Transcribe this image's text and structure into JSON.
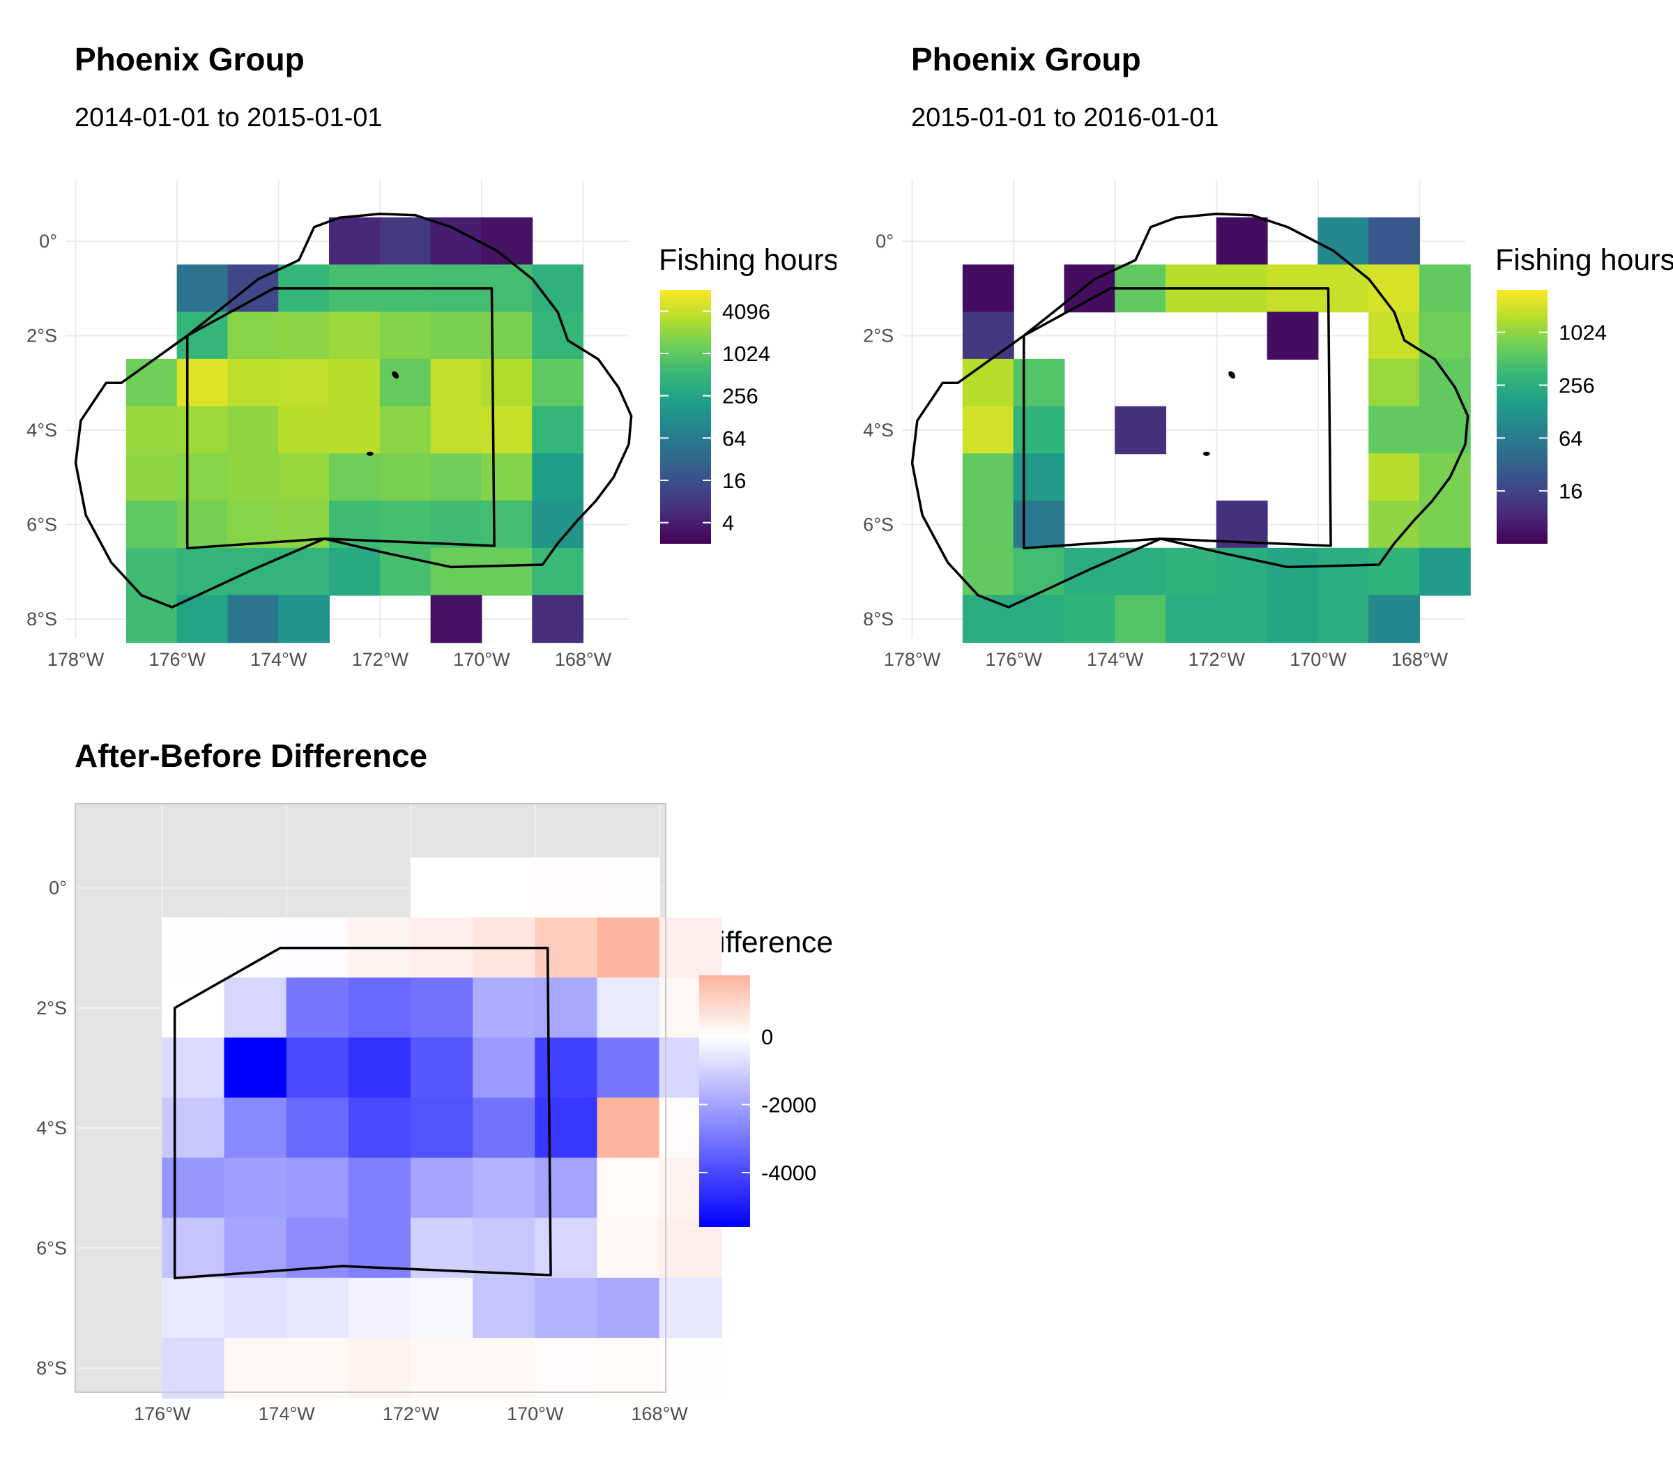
{
  "panels": {
    "before": {
      "title": "Phoenix Group",
      "subtitle": "2014-01-01 to 2015-01-01",
      "legend_title": "Fishing hours",
      "legend_labels": [
        "4096",
        "1024",
        "256",
        "64",
        "16",
        "4"
      ]
    },
    "after": {
      "title": "Phoenix Group",
      "subtitle": "2015-01-01 to 2016-01-01",
      "legend_title": "Fishing hours",
      "legend_labels": [
        "1024",
        "256",
        "64",
        "16"
      ]
    },
    "diff": {
      "title": "After-Before Difference",
      "legend_title": "Difference",
      "legend_labels": [
        "0",
        "-2000",
        "-4000"
      ]
    }
  },
  "colors": {
    "viridis": [
      "#440154",
      "#482878",
      "#3e4989",
      "#31688e",
      "#26828e",
      "#1f9e89",
      "#35b779",
      "#6ece58",
      "#b5de2b",
      "#fde725"
    ],
    "diff_high": "#fdb49c",
    "diff_mid": "#ffffff",
    "diff_low": "#0000ff",
    "panel_bg": "#e3e3e3"
  },
  "chart_data": [
    {
      "type": "heatmap",
      "title": "Phoenix Group",
      "subtitle": "2014-01-01 to 2015-01-01",
      "x_ticks": [
        "178°W",
        "176°W",
        "174°W",
        "172°W",
        "170°W",
        "168°W"
      ],
      "y_ticks": [
        "0°",
        "2°S",
        "4°S",
        "6°S",
        "8°S"
      ],
      "xlim": [
        -178.2,
        -167.1
      ],
      "ylim": [
        -8.4,
        1.3
      ],
      "color_scale": "viridis, log2",
      "legend": {
        "title": "Fishing hours",
        "breaks": [
          4096,
          1024,
          256,
          64,
          16,
          4
        ]
      },
      "cell_size_deg": 1,
      "cells": [
        [
          -173,
          0,
          5
        ],
        [
          -172,
          0,
          8
        ],
        [
          -171,
          0,
          4
        ],
        [
          -170,
          0,
          3
        ],
        [
          -176,
          -1,
          45
        ],
        [
          -175,
          -1,
          12
        ],
        [
          -174,
          -1,
          500
        ],
        [
          -173,
          -1,
          700
        ],
        [
          -172,
          -1,
          700
        ],
        [
          -171,
          -1,
          650
        ],
        [
          -170,
          -1,
          650
        ],
        [
          -169,
          -1,
          400
        ],
        [
          -176,
          -2,
          500
        ],
        [
          -175,
          -2,
          1800
        ],
        [
          -174,
          -2,
          1900
        ],
        [
          -173,
          -2,
          2300
        ],
        [
          -172,
          -2,
          1700
        ],
        [
          -171,
          -2,
          1500
        ],
        [
          -170,
          -2,
          1500
        ],
        [
          -169,
          -2,
          500
        ],
        [
          -177,
          -3,
          1300
        ],
        [
          -176,
          -3,
          5600
        ],
        [
          -175,
          -3,
          3600
        ],
        [
          -174,
          -3,
          3700
        ],
        [
          -173,
          -3,
          3300
        ],
        [
          -172,
          -3,
          1100
        ],
        [
          -171,
          -3,
          3700
        ],
        [
          -170,
          -3,
          3000
        ],
        [
          -169,
          -3,
          1000
        ],
        [
          -177,
          -4,
          2200
        ],
        [
          -176,
          -4,
          2400
        ],
        [
          -175,
          -4,
          2000
        ],
        [
          -174,
          -4,
          3300
        ],
        [
          -173,
          -4,
          3400
        ],
        [
          -172,
          -4,
          1900
        ],
        [
          -171,
          -4,
          3700
        ],
        [
          -170,
          -4,
          4100
        ],
        [
          -169,
          -4,
          500
        ],
        [
          -177,
          -5,
          2000
        ],
        [
          -176,
          -5,
          1800
        ],
        [
          -175,
          -5,
          2000
        ],
        [
          -174,
          -5,
          2200
        ],
        [
          -173,
          -5,
          1300
        ],
        [
          -172,
          -5,
          1500
        ],
        [
          -171,
          -5,
          1300
        ],
        [
          -170,
          -5,
          1700
        ],
        [
          -169,
          -5,
          200
        ],
        [
          -177,
          -6,
          1000
        ],
        [
          -176,
          -6,
          1400
        ],
        [
          -175,
          -6,
          1800
        ],
        [
          -174,
          -6,
          1900
        ],
        [
          -173,
          -6,
          600
        ],
        [
          -172,
          -6,
          700
        ],
        [
          -171,
          -6,
          600
        ],
        [
          -170,
          -6,
          650
        ],
        [
          -169,
          -6,
          150
        ],
        [
          -177,
          -7,
          600
        ],
        [
          -176,
          -7,
          500
        ],
        [
          -175,
          -7,
          450
        ],
        [
          -174,
          -7,
          450
        ],
        [
          -173,
          -7,
          300
        ],
        [
          -172,
          -7,
          700
        ],
        [
          -171,
          -7,
          1200
        ],
        [
          -170,
          -7,
          1200
        ],
        [
          -169,
          -7,
          550
        ],
        [
          -177,
          -8,
          600
        ],
        [
          -176,
          -8,
          250
        ],
        [
          -175,
          -8,
          50
        ],
        [
          -174,
          -8,
          150
        ],
        [
          -171,
          -8,
          3
        ],
        [
          -169,
          -8,
          6
        ]
      ]
    },
    {
      "type": "heatmap",
      "title": "Phoenix Group",
      "subtitle": "2015-01-01 to 2016-01-01",
      "x_ticks": [
        "178°W",
        "176°W",
        "174°W",
        "172°W",
        "170°W",
        "168°W"
      ],
      "y_ticks": [
        "0°",
        "2°S",
        "4°S",
        "6°S",
        "8°S"
      ],
      "xlim": [
        -178.2,
        -167.1
      ],
      "ylim": [
        -8.4,
        1.3
      ],
      "color_scale": "viridis, log2",
      "legend": {
        "title": "Fishing hours",
        "breaks": [
          1024,
          256,
          64,
          16
        ]
      },
      "cell_size_deg": 1,
      "cells": [
        [
          -172,
          0,
          5
        ],
        [
          -170,
          0,
          90
        ],
        [
          -169,
          0,
          25
        ],
        [
          -177,
          -1,
          5
        ],
        [
          -175,
          -1,
          5
        ],
        [
          -174,
          -1,
          600
        ],
        [
          -173,
          -1,
          1500
        ],
        [
          -172,
          -1,
          1500
        ],
        [
          -171,
          -1,
          1800
        ],
        [
          -170,
          -1,
          1800
        ],
        [
          -169,
          -1,
          2100
        ],
        [
          -168,
          -1,
          600
        ],
        [
          -177,
          -2,
          12
        ],
        [
          -171,
          -2,
          5
        ],
        [
          -169,
          -2,
          1800
        ],
        [
          -168,
          -2,
          700
        ],
        [
          -177,
          -3,
          1500
        ],
        [
          -176,
          -3,
          500
        ],
        [
          -169,
          -3,
          1100
        ],
        [
          -168,
          -3,
          600
        ],
        [
          -177,
          -4,
          2000
        ],
        [
          -176,
          -4,
          300
        ],
        [
          -174,
          -4,
          10
        ],
        [
          -169,
          -4,
          600
        ],
        [
          -168,
          -4,
          600
        ],
        [
          -177,
          -5,
          600
        ],
        [
          -176,
          -5,
          150
        ],
        [
          -169,
          -5,
          1500
        ],
        [
          -168,
          -5,
          800
        ],
        [
          -177,
          -6,
          600
        ],
        [
          -176,
          -6,
          60
        ],
        [
          -172,
          -6,
          10
        ],
        [
          -169,
          -6,
          1000
        ],
        [
          -168,
          -6,
          800
        ],
        [
          -177,
          -7,
          600
        ],
        [
          -176,
          -7,
          400
        ],
        [
          -175,
          -7,
          250
        ],
        [
          -174,
          -7,
          250
        ],
        [
          -173,
          -7,
          300
        ],
        [
          -172,
          -7,
          250
        ],
        [
          -171,
          -7,
          200
        ],
        [
          -170,
          -7,
          250
        ],
        [
          -169,
          -7,
          300
        ],
        [
          -168,
          -7,
          150
        ],
        [
          -177,
          -8,
          250
        ],
        [
          -176,
          -8,
          250
        ],
        [
          -175,
          -8,
          300
        ],
        [
          -174,
          -8,
          500
        ],
        [
          -173,
          -8,
          250
        ],
        [
          -172,
          -8,
          250
        ],
        [
          -171,
          -8,
          200
        ],
        [
          -170,
          -8,
          250
        ],
        [
          -169,
          -8,
          90
        ]
      ]
    },
    {
      "type": "heatmap",
      "title": "After-Before Difference",
      "x_ticks": [
        "176°W",
        "174°W",
        "172°W",
        "170°W",
        "168°W"
      ],
      "y_ticks": [
        "0°",
        "2°S",
        "4°S",
        "6°S",
        "8°S"
      ],
      "xlim": [
        -177.4,
        -167.9
      ],
      "ylim": [
        -8.4,
        1.4
      ],
      "color_scale": "diverging blue-white-salmon",
      "legend": {
        "title": "Difference",
        "breaks": [
          0,
          -2000,
          -4000
        ],
        "range": [
          -5600,
          1800
        ]
      },
      "background": "grey",
      "cell_size_deg": 1,
      "cells": [
        [
          -172,
          0,
          5
        ],
        [
          -171,
          0,
          0
        ],
        [
          -170,
          0,
          100
        ],
        [
          -169,
          0,
          50
        ],
        [
          -176,
          -1,
          40
        ],
        [
          -175,
          -1,
          50
        ],
        [
          -174,
          -1,
          100
        ],
        [
          -173,
          -1,
          300
        ],
        [
          -172,
          -1,
          400
        ],
        [
          -171,
          -1,
          600
        ],
        [
          -170,
          -1,
          1200
        ],
        [
          -169,
          -1,
          1800
        ],
        [
          -168,
          -1,
          400
        ],
        [
          -176,
          -2,
          10
        ],
        [
          -175,
          -2,
          900
        ],
        [
          -174,
          -2,
          3000
        ],
        [
          -173,
          -2,
          3300
        ],
        [
          -172,
          -2,
          3100
        ],
        [
          -171,
          -2,
          1800
        ],
        [
          -170,
          -2,
          1900
        ],
        [
          -169,
          -2,
          450
        ],
        [
          -168,
          -2,
          200
        ],
        [
          -176,
          -3,
          800
        ],
        [
          -175,
          -3,
          5600
        ],
        [
          -174,
          -3,
          4000
        ],
        [
          -173,
          -3,
          4500
        ],
        [
          -172,
          -3,
          3700
        ],
        [
          -171,
          -3,
          2200
        ],
        [
          -170,
          -3,
          4200
        ],
        [
          -169,
          -3,
          3000
        ],
        [
          -168,
          -3,
          900
        ],
        [
          -176,
          -4,
          1200
        ],
        [
          -175,
          -4,
          2600
        ],
        [
          -174,
          -4,
          3300
        ],
        [
          -173,
          -4,
          4000
        ],
        [
          -172,
          -4,
          3800
        ],
        [
          -171,
          -4,
          3100
        ],
        [
          -170,
          -4,
          4400
        ],
        [
          -169,
          -4,
          1800
        ],
        [
          -168,
          -4,
          100
        ],
        [
          -176,
          -5,
          2300
        ],
        [
          -175,
          -5,
          2100
        ],
        [
          -174,
          -5,
          2200
        ],
        [
          -173,
          -5,
          2800
        ],
        [
          -172,
          -5,
          2000
        ],
        [
          -171,
          -5,
          1700
        ],
        [
          -170,
          -5,
          2000
        ],
        [
          -169,
          -5,
          150
        ],
        [
          -168,
          -5,
          300
        ],
        [
          -176,
          -6,
          1300
        ],
        [
          -175,
          -6,
          2000
        ],
        [
          -174,
          -6,
          2500
        ],
        [
          -173,
          -6,
          2800
        ],
        [
          -172,
          -6,
          1000
        ],
        [
          -171,
          -6,
          1200
        ],
        [
          -170,
          -6,
          900
        ],
        [
          -169,
          -6,
          200
        ],
        [
          -168,
          -6,
          400
        ],
        [
          -176,
          -7,
          500
        ],
        [
          -175,
          -7,
          650
        ],
        [
          -174,
          -7,
          550
        ],
        [
          -173,
          -7,
          300
        ],
        [
          -172,
          -7,
          200
        ],
        [
          -171,
          -7,
          1300
        ],
        [
          -170,
          -7,
          1700
        ],
        [
          -169,
          -7,
          1900
        ],
        [
          -168,
          -7,
          550
        ],
        [
          -176,
          -8,
          800
        ],
        [
          -175,
          -8,
          200
        ],
        [
          -174,
          -8,
          200
        ],
        [
          -173,
          -8,
          300
        ],
        [
          -172,
          -8,
          200
        ],
        [
          -171,
          -8,
          200
        ],
        [
          -170,
          -8,
          100
        ],
        [
          -169,
          -8,
          150
        ],
        [
          -168,
          -8,
          50
        ]
      ]
    }
  ]
}
